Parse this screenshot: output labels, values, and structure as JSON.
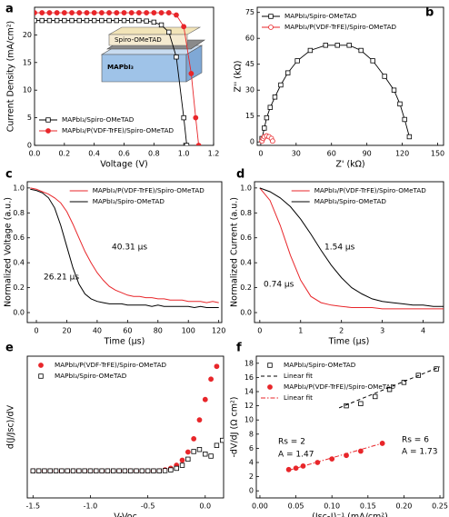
{
  "chart_data": [
    {
      "type": "line",
      "panel_label": "a",
      "xlabel": "Voltage (V)",
      "ylabel": "Current Density (mA/cm²)",
      "xlim": [
        0,
        1.2
      ],
      "ylim": [
        0,
        25
      ],
      "xticks": [
        {
          "value": 0,
          "label": "0.0"
        },
        {
          "value": 0.2,
          "label": "0.2"
        },
        {
          "value": 0.4,
          "label": "0.4"
        },
        {
          "value": 0.6,
          "label": "0.6"
        },
        {
          "value": 0.8,
          "label": "0.8"
        },
        {
          "value": 1,
          "label": "1.0"
        },
        {
          "value": 1.2,
          "label": "1.2"
        }
      ],
      "yticks": [
        0,
        5,
        10,
        15,
        20
      ],
      "legend": "lower left",
      "inset_labels": [
        "Spiro-OMeTAD",
        "MAPbI₃"
      ],
      "series": [
        {
          "name": "MAPbI₃/Spiro-OMeTAD",
          "color": "#000000",
          "marker": "open-square",
          "line": "solid",
          "x": [
            0,
            0.05,
            0.1,
            0.15,
            0.2,
            0.25,
            0.3,
            0.35,
            0.4,
            0.45,
            0.5,
            0.55,
            0.6,
            0.65,
            0.7,
            0.75,
            0.8,
            0.85,
            0.9,
            0.95,
            1.0,
            1.02
          ],
          "values": [
            22.6,
            22.6,
            22.6,
            22.6,
            22.6,
            22.6,
            22.6,
            22.6,
            22.6,
            22.6,
            22.6,
            22.6,
            22.6,
            22.6,
            22.6,
            22.5,
            22.3,
            21.8,
            20.5,
            16,
            5,
            0
          ]
        },
        {
          "name": "MAPbI₃/P(VDF-TrFE)/Spiro-OMeTAD",
          "color": "#e8262a",
          "marker": "filled-circle",
          "line": "solid",
          "x": [
            0,
            0.05,
            0.1,
            0.15,
            0.2,
            0.25,
            0.3,
            0.35,
            0.4,
            0.45,
            0.5,
            0.55,
            0.6,
            0.65,
            0.7,
            0.75,
            0.8,
            0.85,
            0.9,
            0.95,
            1.0,
            1.05,
            1.08,
            1.1
          ],
          "values": [
            24,
            24,
            24,
            24,
            24,
            24,
            24,
            24,
            24,
            24,
            24,
            24,
            24,
            24,
            24,
            24,
            24,
            24,
            24,
            23.6,
            21.5,
            13,
            5,
            0
          ]
        }
      ]
    },
    {
      "type": "line",
      "panel_label": "b",
      "xlabel": "Z' (kΩ)",
      "ylabel": "Z'' (kΩ)",
      "xlim": [
        -3,
        155
      ],
      "ylim": [
        -2,
        78
      ],
      "xticks": [
        0,
        30,
        60,
        90,
        120,
        150
      ],
      "yticks": [
        0,
        15,
        30,
        45,
        60,
        75
      ],
      "legend": "upper left",
      "series": [
        {
          "name": "MAPbI₃/Spiro-OMeTAD",
          "color": "#000000",
          "marker": "open-square",
          "line": "solid",
          "x": [
            1,
            3,
            5,
            8,
            12,
            17,
            23,
            31,
            42,
            55,
            65,
            75,
            85,
            95,
            105,
            113,
            118,
            122,
            126
          ],
          "values": [
            2,
            8,
            14,
            20,
            26,
            33,
            40,
            47,
            53,
            56,
            56,
            56,
            53,
            47,
            38,
            30,
            22,
            13,
            3
          ]
        },
        {
          "name": "MAPbI₃/P(VDF-TrFE)/Spiro-OMeTAD",
          "color": "#e8262a",
          "marker": "open-circle",
          "line": "solid",
          "x": [
            1,
            2,
            3,
            5,
            7,
            9,
            10
          ],
          "values": [
            0.5,
            2,
            3,
            3.5,
            3,
            2,
            0.5
          ]
        }
      ]
    },
    {
      "type": "line",
      "panel_label": "c",
      "xlabel": "Time (μs)",
      "ylabel": "Normalized Voltage (a.u.)",
      "xlim": [
        -6,
        122
      ],
      "ylim": [
        -0.08,
        1.05
      ],
      "xticks": [
        0,
        20,
        40,
        60,
        80,
        100,
        120
      ],
      "yticks": [
        {
          "value": 0,
          "label": "0.0"
        },
        {
          "value": 0.2,
          "label": "0.2"
        },
        {
          "value": 0.4,
          "label": "0.4"
        },
        {
          "value": 0.6,
          "label": "0.6"
        },
        {
          "value": 0.8,
          "label": "0.8"
        },
        {
          "value": 1,
          "label": "1.0"
        }
      ],
      "legend": "upper right",
      "annotations": [
        {
          "text": "40.31 μs",
          "color": "#e8262a"
        },
        {
          "text": "26.21 μs",
          "color": "#000000"
        }
      ],
      "x": [
        -4,
        0,
        4,
        8,
        12,
        16,
        20,
        24,
        28,
        32,
        36,
        40,
        44,
        48,
        52,
        56,
        60,
        64,
        68,
        72,
        76,
        80,
        84,
        88,
        92,
        96,
        100,
        104,
        108,
        112,
        116,
        120
      ],
      "series": [
        {
          "name": "MAPbI₃/P(VDF-TrFE)/Spiro-OMeTAD",
          "color": "#e8262a",
          "marker": "none",
          "line": "solid",
          "values": [
            1.0,
            0.99,
            0.97,
            0.95,
            0.92,
            0.88,
            0.81,
            0.71,
            0.6,
            0.49,
            0.4,
            0.32,
            0.26,
            0.21,
            0.18,
            0.16,
            0.14,
            0.13,
            0.13,
            0.12,
            0.12,
            0.11,
            0.11,
            0.1,
            0.1,
            0.1,
            0.09,
            0.09,
            0.09,
            0.08,
            0.09,
            0.08
          ]
        },
        {
          "name": "MAPbI₃/Spiro-OMeTAD",
          "color": "#000000",
          "marker": "none",
          "line": "solid",
          "values": [
            0.99,
            0.98,
            0.96,
            0.92,
            0.84,
            0.7,
            0.53,
            0.36,
            0.23,
            0.15,
            0.11,
            0.09,
            0.08,
            0.07,
            0.07,
            0.07,
            0.06,
            0.06,
            0.06,
            0.06,
            0.05,
            0.06,
            0.05,
            0.05,
            0.05,
            0.05,
            0.05,
            0.04,
            0.05,
            0.04,
            0.04,
            0.04
          ]
        }
      ]
    },
    {
      "type": "line",
      "panel_label": "d",
      "xlabel": "Time (μs)",
      "ylabel": "Normalized Current (a.u.)",
      "xlim": [
        -0.13,
        4.5
      ],
      "ylim": [
        -0.08,
        1.05
      ],
      "xticks": [
        0,
        1,
        2,
        3,
        4
      ],
      "yticks": [
        {
          "value": 0,
          "label": "0.0"
        },
        {
          "value": 0.2,
          "label": "0.2"
        },
        {
          "value": 0.4,
          "label": "0.4"
        },
        {
          "value": 0.6,
          "label": "0.6"
        },
        {
          "value": 0.8,
          "label": "0.8"
        },
        {
          "value": 1,
          "label": "1.0"
        }
      ],
      "legend": "upper right",
      "annotations": [
        {
          "text": "1.54 μs",
          "color": "#000000"
        },
        {
          "text": "0.74 μs",
          "color": "#000000"
        }
      ],
      "x": [
        0,
        0.25,
        0.5,
        0.75,
        1,
        1.25,
        1.5,
        1.75,
        2,
        2.25,
        2.5,
        2.75,
        3,
        3.25,
        3.5,
        3.75,
        4,
        4.25,
        4.5
      ],
      "series": [
        {
          "name": "MAPbI₃/P(VDF-TrFE)/Spiro-OMeTAD",
          "color": "#e8262a",
          "marker": "none",
          "line": "solid",
          "values": [
            1.0,
            0.9,
            0.7,
            0.46,
            0.26,
            0.13,
            0.08,
            0.06,
            0.05,
            0.04,
            0.04,
            0.04,
            0.03,
            0.03,
            0.03,
            0.03,
            0.03,
            0.03,
            0.03
          ]
        },
        {
          "name": "MAPbI₃/Spiro-OMeTAD",
          "color": "#000000",
          "marker": "none",
          "line": "solid",
          "values": [
            1.0,
            0.97,
            0.92,
            0.85,
            0.75,
            0.63,
            0.5,
            0.38,
            0.28,
            0.2,
            0.15,
            0.11,
            0.09,
            0.08,
            0.07,
            0.06,
            0.06,
            0.05,
            0.05
          ]
        }
      ]
    },
    {
      "type": "scatter",
      "panel_label": "e",
      "xlabel": "V-Voc",
      "ylabel": "d(J/Jsc)/dV",
      "xlim": [
        -1.55,
        0.16
      ],
      "ylim": [
        -4.8,
        23
      ],
      "xticks": [
        {
          "value": -1.5,
          "label": "-1.5"
        },
        {
          "value": -1,
          "label": "-1.0"
        },
        {
          "value": -0.5,
          "label": "-0.5"
        },
        {
          "value": 0,
          "label": "0.0"
        }
      ],
      "legend": "upper left",
      "x": [
        -1.5,
        -1.45,
        -1.4,
        -1.35,
        -1.3,
        -1.25,
        -1.2,
        -1.15,
        -1.1,
        -1.05,
        -1.0,
        -0.95,
        -0.9,
        -0.85,
        -0.8,
        -0.75,
        -0.7,
        -0.65,
        -0.6,
        -0.55,
        -0.5,
        -0.45,
        -0.4,
        -0.35,
        -0.3,
        -0.25,
        -0.2,
        -0.15,
        -0.1,
        -0.05,
        0,
        0.05,
        0.1,
        0.15
      ],
      "series": [
        {
          "name": "MAPbI₃/P(VDF-TrFE)/Spiro-OMeTAD",
          "color": "#e8262a",
          "marker": "filled-circle",
          "line": "none",
          "values": [
            0.5,
            0.5,
            0.5,
            0.5,
            0.5,
            0.5,
            0.5,
            0.5,
            0.5,
            0.5,
            0.5,
            0.5,
            0.5,
            0.5,
            0.5,
            0.5,
            0.5,
            0.5,
            0.5,
            0.5,
            0.5,
            0.5,
            0.5,
            0.7,
            1.0,
            1.6,
            2.6,
            4.2,
            6.8,
            10.5,
            14.5,
            18.5,
            21,
            null
          ]
        },
        {
          "name": "MAPbI₃/Spiro-OMeTAD",
          "color": "#000000",
          "marker": "open-square",
          "line": "none",
          "values": [
            0.5,
            0.5,
            0.5,
            0.5,
            0.5,
            0.5,
            0.5,
            0.5,
            0.5,
            0.5,
            0.5,
            0.5,
            0.5,
            0.5,
            0.5,
            0.5,
            0.5,
            0.5,
            0.5,
            0.5,
            0.5,
            0.5,
            0.5,
            0.55,
            0.7,
            1.0,
            1.6,
            2.8,
            4.3,
            4.7,
            3.8,
            3.4,
            5.5,
            6.5
          ]
        }
      ]
    },
    {
      "type": "scatter",
      "panel_label": "f",
      "xlabel": "(Jsc-J)⁻¹ (mA/cm²)",
      "ylabel": "-dV/dJ (Ω cm²)",
      "xlim": [
        -0.005,
        0.255
      ],
      "ylim": [
        -1,
        19
      ],
      "xticks": [
        {
          "value": 0,
          "label": "0.00"
        },
        0.05,
        {
          "value": 0.1,
          "label": "0.10"
        },
        0.15,
        {
          "value": 0.2,
          "label": "0.20"
        },
        0.25
      ],
      "yticks": [
        0,
        2,
        4,
        6,
        8,
        10,
        12,
        14,
        16,
        18
      ],
      "legend": "upper left",
      "annotations": [
        {
          "text": "Rs = 6",
          "color": "#000000"
        },
        {
          "text": "A = 1.73",
          "color": "#000000"
        },
        {
          "text": "Rs = 2",
          "color": "#e8262a"
        },
        {
          "text": "A = 1.47",
          "color": "#e8262a"
        }
      ],
      "series": [
        {
          "name": "MAPbI₃/Spiro-OMeTAD",
          "color": "#000000",
          "marker": "open-square",
          "line": "none",
          "x": [
            0.12,
            0.14,
            0.16,
            0.18,
            0.2,
            0.22,
            0.245
          ],
          "values": [
            12,
            12.3,
            13.3,
            14.3,
            15.3,
            16.3,
            17.2
          ]
        },
        {
          "name": "Linear fit",
          "color": "#000000",
          "marker": "none",
          "line": "dashed",
          "x": [
            0.11,
            0.25
          ],
          "values": [
            11.7,
            17.5
          ]
        },
        {
          "name": "MAPbI₃/P(VDF-TrFE)/Spiro-OMeTAD",
          "color": "#e8262a",
          "marker": "filled-circle",
          "line": "none",
          "x": [
            0.04,
            0.05,
            0.06,
            0.08,
            0.1,
            0.12,
            0.14,
            0.17
          ],
          "values": [
            3.0,
            3.2,
            3.5,
            4.0,
            4.5,
            5.0,
            5.6,
            6.7
          ]
        },
        {
          "name": "Linear fit",
          "color": "#e8262a",
          "marker": "none",
          "line": "dashdot",
          "x": [
            0.04,
            0.17
          ],
          "values": [
            2.9,
            6.7
          ]
        }
      ]
    }
  ]
}
